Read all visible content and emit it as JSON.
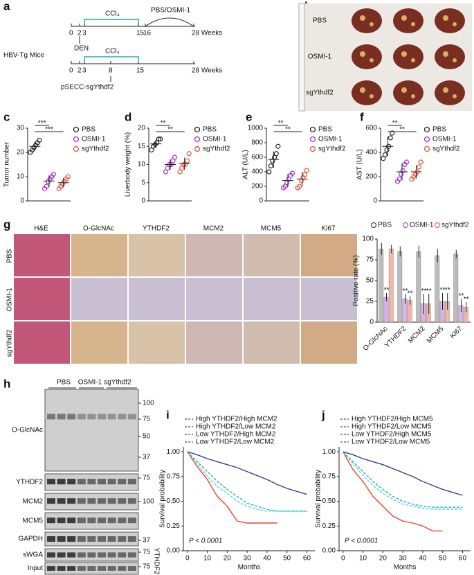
{
  "panel_letters": [
    "a",
    "b",
    "c",
    "d",
    "e",
    "f",
    "g",
    "h",
    "i",
    "j"
  ],
  "scheme": {
    "row1": {
      "ticks": [
        "0",
        "2",
        "3",
        "15",
        "16",
        "28 Weeks"
      ],
      "ccl4": "CCl₄",
      "treatment": "PBS/OSMI-1"
    },
    "mouse": "HBV-Tg Mice",
    "den": "DEN",
    "row2": {
      "ticks": [
        "0",
        "2",
        "3",
        "8",
        "15",
        "28 Weeks"
      ],
      "ccl4": "CCl₄"
    },
    "vector": "pSECC-sgYthdf2"
  },
  "liver_photos": {
    "rows": [
      "PBS",
      "OSMI-1",
      "sgYthdf2"
    ]
  },
  "histology": {
    "stains": [
      "H&E",
      "O-GlcNAc",
      "YTHDF2",
      "MCM2",
      "MCM5",
      "Ki67"
    ],
    "rows": [
      "PBS",
      "OSMI-1",
      "sgYthdf2"
    ]
  },
  "western_blot": {
    "groups": [
      "PBS",
      "OSMI-1",
      "sgYthdf2"
    ],
    "blots": [
      "O-GlcNAc",
      "YTHDF2",
      "MCM2",
      "MCM5",
      "GAPDH",
      "sWGA",
      "Input"
    ],
    "markers": [
      "100",
      "75",
      "50",
      "37",
      "75",
      "100",
      "37",
      "75",
      "75"
    ],
    "pulldown_label": "YTHDF2"
  },
  "chart_data": [
    {
      "type": "dot",
      "ylabel": "Tumor number",
      "ylim": [
        0,
        30
      ],
      "yticks": [
        0,
        10,
        20,
        30
      ],
      "significance": [
        "***",
        "***"
      ],
      "series": [
        {
          "name": "PBS",
          "color": "#222222",
          "values": [
            20,
            21,
            22,
            23,
            24,
            25
          ],
          "mean": 22.5,
          "error": 1.8
        },
        {
          "name": "OSMI-1",
          "color": "#9b30d9",
          "values": [
            5,
            6,
            8,
            9,
            10,
            11
          ],
          "mean": 8.2,
          "error": 2.3
        },
        {
          "name": "sgYthdf2",
          "color": "#e8503a",
          "values": [
            5,
            6,
            7,
            8,
            9,
            10
          ],
          "mean": 7.5,
          "error": 1.9
        }
      ]
    },
    {
      "type": "dot",
      "ylabel": "Liverbody weight (%)",
      "ylim": [
        0,
        20
      ],
      "yticks": [
        0,
        5,
        10,
        15,
        20
      ],
      "significance": [
        "**",
        "**"
      ],
      "series": [
        {
          "name": "PBS",
          "color": "#222222",
          "values": [
            14,
            15,
            15.5,
            16,
            17,
            17
          ],
          "mean": 15.7,
          "error": 1.1
        },
        {
          "name": "OSMI-1",
          "color": "#9b30d9",
          "values": [
            8,
            9,
            10,
            10,
            11,
            12
          ],
          "mean": 10,
          "error": 1.4
        },
        {
          "name": "sgYthdf2",
          "color": "#e8503a",
          "values": [
            8,
            9,
            10,
            10,
            11,
            13
          ],
          "mean": 10.2,
          "error": 1.7
        }
      ]
    },
    {
      "type": "dot",
      "ylabel": "ALT (U/L)",
      "ylim": [
        0,
        1000
      ],
      "yticks": [
        0,
        200,
        400,
        600,
        800,
        1000
      ],
      "significance": [
        "**",
        "**"
      ],
      "series": [
        {
          "name": "PBS",
          "color": "#222222",
          "values": [
            400,
            480,
            550,
            600,
            650,
            750
          ],
          "mean": 570,
          "error": 110
        },
        {
          "name": "OSMI-1",
          "color": "#9b30d9",
          "values": [
            180,
            200,
            250,
            300,
            350,
            380
          ],
          "mean": 280,
          "error": 90
        },
        {
          "name": "sgYthdf2",
          "color": "#e8503a",
          "values": [
            180,
            200,
            280,
            320,
            360,
            420
          ],
          "mean": 300,
          "error": 100
        }
      ]
    },
    {
      "type": "dot",
      "ylabel": "AST (U/L)",
      "ylim": [
        0,
        600
      ],
      "yticks": [
        0,
        200,
        400,
        600
      ],
      "significance": [
        "**",
        "**"
      ],
      "series": [
        {
          "name": "PBS",
          "color": "#222222",
          "values": [
            350,
            380,
            420,
            450,
            520,
            560
          ],
          "mean": 450,
          "error": 80
        },
        {
          "name": "OSMI-1",
          "color": "#9b30d9",
          "values": [
            160,
            180,
            220,
            250,
            300,
            320
          ],
          "mean": 240,
          "error": 70
        },
        {
          "name": "sgYthdf2",
          "color": "#e8503a",
          "values": [
            180,
            200,
            220,
            240,
            280,
            320
          ],
          "mean": 240,
          "error": 55
        }
      ]
    },
    {
      "type": "bar",
      "ylabel": "Positive rate (%)",
      "ylim": [
        0,
        100
      ],
      "yticks": [
        0,
        25,
        50,
        75,
        100
      ],
      "categories": [
        "O-GlcNAc",
        "YTHDF2",
        "MCM2",
        "MCM5",
        "Ki67"
      ],
      "series": [
        {
          "name": "PBS",
          "color": "#bdbdbd",
          "values": [
            88,
            85,
            85,
            80,
            82
          ],
          "errors": [
            7,
            6,
            7,
            8,
            5
          ],
          "stars": [
            null,
            null,
            null,
            null,
            null
          ]
        },
        {
          "name": "OSMI-1",
          "color": "#d9b3ee",
          "values": [
            30,
            28,
            22,
            25,
            20
          ],
          "errors": [
            5,
            6,
            12,
            10,
            8
          ],
          "stars": [
            "**",
            "**",
            "**",
            "**",
            "**"
          ]
        },
        {
          "name": "sgYthdf2",
          "color": "#f4b6a8",
          "values": [
            88,
            26,
            22,
            25,
            18
          ],
          "errors": [
            5,
            5,
            12,
            10,
            6
          ],
          "stars": [
            null,
            "**",
            "**",
            "**",
            "**"
          ]
        }
      ]
    },
    {
      "type": "line",
      "xlabel": "Months",
      "ylabel": "Survival probability",
      "annotation": "P < 0.0001",
      "xlim": [
        -2,
        64
      ],
      "xticks": [
        0,
        10,
        20,
        30,
        40,
        50,
        60
      ],
      "ylim": [
        0,
        1.05
      ],
      "yticks": [
        {
          "value": 0,
          "label": "0.00"
        },
        {
          "value": 0.25,
          "label": "0.25"
        },
        {
          "value": 0.5,
          "label": "0.50"
        },
        {
          "value": 0.75,
          "label": "0.75"
        },
        {
          "value": 1,
          "label": "1.00"
        }
      ],
      "x": [
        0,
        5,
        10,
        15,
        20,
        25,
        30,
        35,
        40,
        45,
        50,
        55,
        60
      ],
      "series": [
        {
          "name": "High YTHDF2/High MCM2",
          "color": "#e8452c",
          "values": [
            1,
            0.85,
            0.72,
            0.55,
            0.45,
            0.3,
            0.28,
            0.28,
            0.28,
            0.28,
            null,
            null,
            null
          ]
        },
        {
          "name": "High YTHDF2/Low MCM2",
          "color": "#50d8e8",
          "values": [
            1,
            0.88,
            0.75,
            0.65,
            0.58,
            0.5,
            0.45,
            0.42,
            0.4,
            0.4,
            0.4,
            0.4,
            0.4
          ]
        },
        {
          "name": "Low YTHDF2/High MCM2",
          "color": "#2ab5a5",
          "values": [
            1,
            0.9,
            0.8,
            0.7,
            0.62,
            0.55,
            0.48,
            0.45,
            0.42,
            0.4,
            0.4,
            0.4,
            0.4
          ]
        },
        {
          "name": "Low YTHDF2/Low MCM2",
          "color": "#3a3a9a",
          "values": [
            1,
            0.97,
            0.93,
            0.9,
            0.87,
            0.84,
            0.8,
            0.76,
            0.72,
            0.67,
            0.63,
            0.6,
            0.57
          ]
        }
      ]
    },
    {
      "type": "line",
      "xlabel": "Months",
      "ylabel": "Survival probability",
      "annotation": "P < 0.0001",
      "xlim": [
        -2,
        64
      ],
      "xticks": [
        0,
        10,
        20,
        30,
        40,
        50,
        60
      ],
      "ylim": [
        0,
        1.05
      ],
      "yticks": [
        {
          "value": 0,
          "label": "0.00"
        },
        {
          "value": 0.25,
          "label": "0.25"
        },
        {
          "value": 0.5,
          "label": "0.50"
        },
        {
          "value": 0.75,
          "label": "0.75"
        },
        {
          "value": 1,
          "label": "1.00"
        }
      ],
      "x": [
        0,
        5,
        10,
        15,
        20,
        25,
        30,
        35,
        40,
        45,
        50,
        55,
        60
      ],
      "series": [
        {
          "name": "High YTHDF2/High MCM5",
          "color": "#e8452c",
          "values": [
            1,
            0.82,
            0.7,
            0.55,
            0.45,
            0.35,
            0.3,
            0.28,
            0.25,
            0.2,
            0.2,
            null,
            null
          ]
        },
        {
          "name": "High YTHDF2/Low MCM5",
          "color": "#50d8e8",
          "values": [
            1,
            0.88,
            0.76,
            0.66,
            0.58,
            0.52,
            0.47,
            0.45,
            0.43,
            0.42,
            0.42,
            0.42,
            0.42
          ]
        },
        {
          "name": "Low YTHDF2/High MCM5",
          "color": "#2ab5a5",
          "values": [
            1,
            0.9,
            0.8,
            0.7,
            0.62,
            0.55,
            0.5,
            0.47,
            0.45,
            0.44,
            0.44,
            0.44,
            0.44
          ]
        },
        {
          "name": "Low YTHDF2/Low MCM5",
          "color": "#3a3a9a",
          "values": [
            1,
            0.97,
            0.93,
            0.9,
            0.87,
            0.83,
            0.79,
            0.75,
            0.7,
            0.66,
            0.62,
            0.59,
            0.56
          ]
        }
      ]
    }
  ]
}
